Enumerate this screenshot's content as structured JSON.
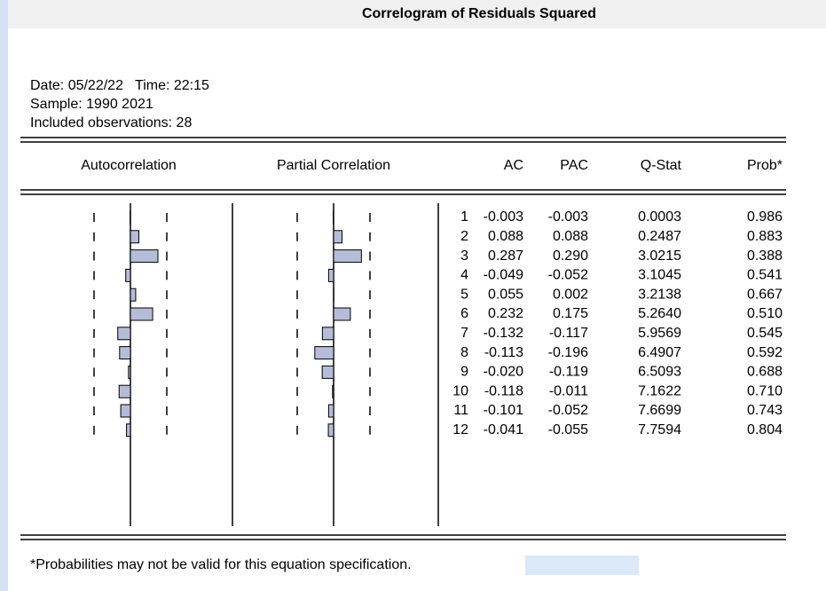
{
  "header": {
    "title": "Correlogram of Residuals Squared",
    "date_time": "Date: 05/22/22   Time: 22:15",
    "sample": "Sample: 1990 2021",
    "observations": "Included observations: 28"
  },
  "table": {
    "columns": [
      "Autocorrelation",
      "Partial Correlation",
      "AC",
      "PAC",
      "Q-Stat",
      "Prob*"
    ],
    "rows": [
      [
        "1",
        "-0.003",
        "-0.003",
        "0.0003",
        "0.986"
      ],
      [
        "2",
        "0.088",
        "0.088",
        "0.2487",
        "0.883"
      ],
      [
        "3",
        "0.287",
        "0.290",
        "3.0215",
        "0.388"
      ],
      [
        "4",
        "-0.049",
        "-0.052",
        "3.1045",
        "0.541"
      ],
      [
        "5",
        "0.055",
        "0.002",
        "3.2138",
        "0.667"
      ],
      [
        "6",
        "0.232",
        "0.175",
        "5.2640",
        "0.510"
      ],
      [
        "7",
        "-0.132",
        "-0.117",
        "5.9569",
        "0.545"
      ],
      [
        "8",
        "-0.113",
        "-0.196",
        "6.4907",
        "0.592"
      ],
      [
        "9",
        "-0.020",
        "-0.119",
        "6.5093",
        "0.688"
      ],
      [
        "10",
        "-0.118",
        "-0.011",
        "7.1622",
        "0.710"
      ],
      [
        "11",
        "-0.101",
        "-0.052",
        "7.6699",
        "0.743"
      ],
      [
        "12",
        "-0.041",
        "-0.055",
        "7.7594",
        "0.804"
      ]
    ]
  },
  "footnote": "*Probabilities may not be valid for this equation specification."
}
